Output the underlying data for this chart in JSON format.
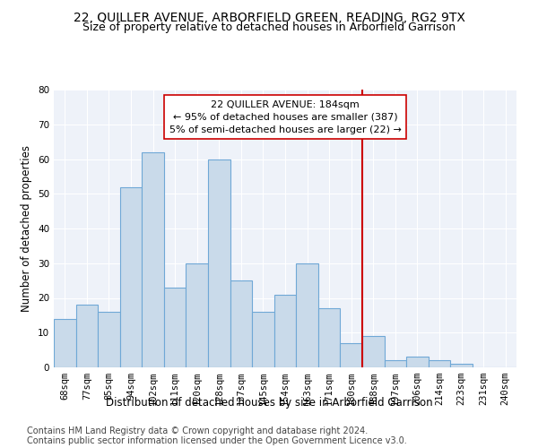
{
  "title": "22, QUILLER AVENUE, ARBORFIELD GREEN, READING, RG2 9TX",
  "subtitle": "Size of property relative to detached houses in Arborfield Garrison",
  "xlabel": "Distribution of detached houses by size in Arborfield Garrison",
  "ylabel": "Number of detached properties",
  "bin_labels": [
    "68sqm",
    "77sqm",
    "85sqm",
    "94sqm",
    "102sqm",
    "111sqm",
    "120sqm",
    "128sqm",
    "137sqm",
    "145sqm",
    "154sqm",
    "163sqm",
    "171sqm",
    "180sqm",
    "188sqm",
    "197sqm",
    "206sqm",
    "214sqm",
    "223sqm",
    "231sqm",
    "240sqm"
  ],
  "bar_heights": [
    14,
    18,
    16,
    52,
    62,
    23,
    30,
    60,
    25,
    16,
    21,
    30,
    17,
    7,
    9,
    2,
    3,
    2,
    1,
    0,
    0
  ],
  "bar_color": "#c9daea",
  "bar_edge_color": "#6fa8d6",
  "vline_x": 13.5,
  "vline_color": "#cc0000",
  "annotation_text": "22 QUILLER AVENUE: 184sqm\n← 95% of detached houses are smaller (387)\n5% of semi-detached houses are larger (22) →",
  "annotation_box_color": "#ffffff",
  "annotation_box_edge": "#cc0000",
  "ylim": [
    0,
    80
  ],
  "yticks": [
    0,
    10,
    20,
    30,
    40,
    50,
    60,
    70,
    80
  ],
  "background_color": "#eef2f9",
  "footer_line1": "Contains HM Land Registry data © Crown copyright and database right 2024.",
  "footer_line2": "Contains public sector information licensed under the Open Government Licence v3.0.",
  "title_fontsize": 10,
  "subtitle_fontsize": 9,
  "xlabel_fontsize": 8.5,
  "ylabel_fontsize": 8.5,
  "annotation_fontsize": 8,
  "footer_fontsize": 7,
  "tick_fontsize": 7.5
}
